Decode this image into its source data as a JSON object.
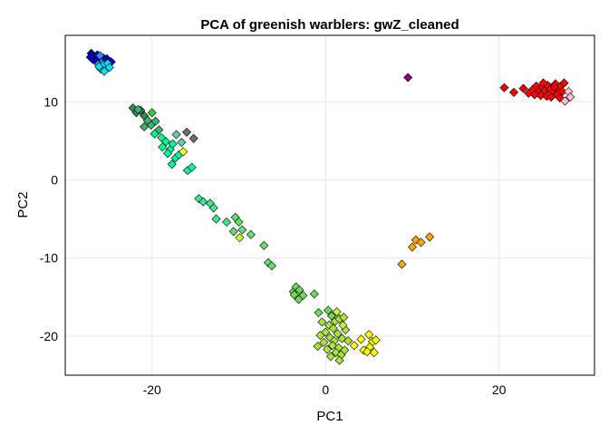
{
  "chart_data": {
    "type": "scatter",
    "title": "PCA of greenish warblers: gwZ_cleaned",
    "xlabel": "PC1",
    "ylabel": "PC2",
    "xlim": [
      -30,
      31
    ],
    "ylim": [
      -25,
      18.5
    ],
    "xticks": [
      -20,
      0,
      20
    ],
    "yticks": [
      -20,
      -10,
      0,
      10
    ],
    "grid": true,
    "marker": "diamond",
    "points": [
      {
        "x": -27.0,
        "y": 16.2,
        "c": "#0000cd"
      },
      {
        "x": -26.6,
        "y": 15.7,
        "c": "#0000cd"
      },
      {
        "x": -26.9,
        "y": 15.9,
        "c": "#0000cd"
      },
      {
        "x": -26.3,
        "y": 16.0,
        "c": "#0000cd"
      },
      {
        "x": -26.1,
        "y": 15.5,
        "c": "#0000cd"
      },
      {
        "x": -26.8,
        "y": 15.4,
        "c": "#0000cd"
      },
      {
        "x": -25.9,
        "y": 15.3,
        "c": "#0000cd"
      },
      {
        "x": -25.6,
        "y": 15.6,
        "c": "#0000cd"
      },
      {
        "x": -26.4,
        "y": 15.2,
        "c": "#0000cd"
      },
      {
        "x": -27.1,
        "y": 15.7,
        "c": "#0000cd"
      },
      {
        "x": -25.2,
        "y": 15.5,
        "c": "#0000cd"
      },
      {
        "x": -24.7,
        "y": 15.1,
        "c": "#0000cd"
      },
      {
        "x": -26.0,
        "y": 15.9,
        "c": "#1e90ff"
      },
      {
        "x": -25.8,
        "y": 15.0,
        "c": "#1e90ff"
      },
      {
        "x": -25.4,
        "y": 14.6,
        "c": "#1e90ff"
      },
      {
        "x": -26.2,
        "y": 14.8,
        "c": "#1e90ff"
      },
      {
        "x": -25.9,
        "y": 14.2,
        "c": "#00e5ff"
      },
      {
        "x": -25.3,
        "y": 14.3,
        "c": "#00e5ff"
      },
      {
        "x": -25.6,
        "y": 14.7,
        "c": "#00e5ff"
      },
      {
        "x": -25.1,
        "y": 14.9,
        "c": "#00e5ff"
      },
      {
        "x": -24.9,
        "y": 14.4,
        "c": "#00e5ff"
      },
      {
        "x": -25.5,
        "y": 13.9,
        "c": "#00e5ff"
      },
      {
        "x": -26.1,
        "y": 14.5,
        "c": "#00e5ff"
      },
      {
        "x": -22.2,
        "y": 9.2,
        "c": "#2e8b57"
      },
      {
        "x": -21.8,
        "y": 8.6,
        "c": "#2e8b57"
      },
      {
        "x": -21.3,
        "y": 8.9,
        "c": "#2e8b57"
      },
      {
        "x": -20.9,
        "y": 8.2,
        "c": "#2e8b57"
      },
      {
        "x": -21.6,
        "y": 9.0,
        "c": "#3cb371"
      },
      {
        "x": -20.5,
        "y": 7.6,
        "c": "#3cb371"
      },
      {
        "x": -20.1,
        "y": 7.0,
        "c": "#3cb371"
      },
      {
        "x": -20.9,
        "y": 6.8,
        "c": "#3cb371"
      },
      {
        "x": -19.6,
        "y": 7.5,
        "c": "#3cb371"
      },
      {
        "x": -19.2,
        "y": 6.4,
        "c": "#3cb371"
      },
      {
        "x": -20.0,
        "y": 8.6,
        "c": "#32cd32"
      },
      {
        "x": -19.7,
        "y": 5.9,
        "c": "#00fa9a"
      },
      {
        "x": -18.9,
        "y": 5.4,
        "c": "#00fa9a"
      },
      {
        "x": -18.4,
        "y": 4.9,
        "c": "#00fa9a"
      },
      {
        "x": -18.8,
        "y": 4.2,
        "c": "#00fa9a"
      },
      {
        "x": -17.9,
        "y": 3.9,
        "c": "#00fa9a"
      },
      {
        "x": -17.6,
        "y": 4.6,
        "c": "#00fa9a"
      },
      {
        "x": -18.2,
        "y": 3.4,
        "c": "#00fa9a"
      },
      {
        "x": -17.3,
        "y": 2.8,
        "c": "#00fa9a"
      },
      {
        "x": -17.7,
        "y": 2.0,
        "c": "#00fa9a"
      },
      {
        "x": -16.9,
        "y": 3.2,
        "c": "#00fa9a"
      },
      {
        "x": -17.2,
        "y": 5.8,
        "c": "#66cdaa"
      },
      {
        "x": -16.6,
        "y": 4.8,
        "c": "#66cdaa"
      },
      {
        "x": -16.4,
        "y": 3.6,
        "c": "#ffff33"
      },
      {
        "x": -15.9,
        "y": 1.2,
        "c": "#00fa9a"
      },
      {
        "x": -15.4,
        "y": 1.6,
        "c": "#00fa9a"
      },
      {
        "x": -16.0,
        "y": 6.1,
        "c": "#6e6e6e"
      },
      {
        "x": -15.2,
        "y": 5.3,
        "c": "#6e6e6e"
      },
      {
        "x": -14.6,
        "y": -2.4,
        "c": "#3ee68f"
      },
      {
        "x": -14.1,
        "y": -2.8,
        "c": "#3ee68f"
      },
      {
        "x": -13.3,
        "y": -3.0,
        "c": "#3ee68f"
      },
      {
        "x": -12.9,
        "y": -3.6,
        "c": "#3ee68f"
      },
      {
        "x": -12.6,
        "y": -5.0,
        "c": "#3ee68f"
      },
      {
        "x": -11.4,
        "y": -5.4,
        "c": "#3ee68f"
      },
      {
        "x": -10.4,
        "y": -4.8,
        "c": "#5fe067"
      },
      {
        "x": -10.0,
        "y": -5.4,
        "c": "#5fe067"
      },
      {
        "x": -10.6,
        "y": -6.6,
        "c": "#5fe067"
      },
      {
        "x": -9.6,
        "y": -6.4,
        "c": "#5fe067"
      },
      {
        "x": -9.9,
        "y": -7.4,
        "c": "#bfff3a"
      },
      {
        "x": -8.6,
        "y": -7.0,
        "c": "#5fe067"
      },
      {
        "x": -7.1,
        "y": -8.4,
        "c": "#5fe067"
      },
      {
        "x": -6.6,
        "y": -10.6,
        "c": "#5fe067"
      },
      {
        "x": -6.2,
        "y": -11.0,
        "c": "#5fe067"
      },
      {
        "x": -3.7,
        "y": -14.3,
        "c": "#6fd856"
      },
      {
        "x": -3.4,
        "y": -13.7,
        "c": "#6fd856"
      },
      {
        "x": -3.0,
        "y": -14.1,
        "c": "#6fd856"
      },
      {
        "x": -3.6,
        "y": -14.7,
        "c": "#6fd856"
      },
      {
        "x": -2.6,
        "y": -14.8,
        "c": "#6fd856"
      },
      {
        "x": -3.1,
        "y": -15.3,
        "c": "#6fd856"
      },
      {
        "x": -1.3,
        "y": -14.6,
        "c": "#6fd856"
      },
      {
        "x": -0.8,
        "y": -17.0,
        "c": "#6fd856"
      },
      {
        "x": 0.3,
        "y": -16.7,
        "c": "#6fd856"
      },
      {
        "x": 0.7,
        "y": -17.4,
        "c": "#6fd856"
      },
      {
        "x": -0.4,
        "y": -18.2,
        "c": "#a8e43a"
      },
      {
        "x": 0.4,
        "y": -18.6,
        "c": "#a8e43a"
      },
      {
        "x": 1.1,
        "y": -18.1,
        "c": "#a8e43a"
      },
      {
        "x": 1.6,
        "y": -17.8,
        "c": "#a8e43a"
      },
      {
        "x": 2.1,
        "y": -17.6,
        "c": "#a8e43a"
      },
      {
        "x": 0.9,
        "y": -19.0,
        "c": "#a8e43a"
      },
      {
        "x": 0.0,
        "y": -19.5,
        "c": "#a8e43a"
      },
      {
        "x": 1.4,
        "y": -19.7,
        "c": "#a8e43a"
      },
      {
        "x": 2.3,
        "y": -19.2,
        "c": "#a8e43a"
      },
      {
        "x": -0.6,
        "y": -19.9,
        "c": "#a8e43a"
      },
      {
        "x": 0.5,
        "y": -20.2,
        "c": "#a8e43a"
      },
      {
        "x": 1.0,
        "y": -20.6,
        "c": "#a8e43a"
      },
      {
        "x": 1.9,
        "y": -20.3,
        "c": "#a8e43a"
      },
      {
        "x": -0.2,
        "y": -20.8,
        "c": "#a8e43a"
      },
      {
        "x": 0.8,
        "y": -21.2,
        "c": "#a8e43a"
      },
      {
        "x": 1.5,
        "y": -21.5,
        "c": "#a8e43a"
      },
      {
        "x": 0.2,
        "y": -21.7,
        "c": "#a8e43a"
      },
      {
        "x": 1.2,
        "y": -22.1,
        "c": "#a8e43a"
      },
      {
        "x": 1.8,
        "y": -22.4,
        "c": "#a8e43a"
      },
      {
        "x": 0.6,
        "y": -22.6,
        "c": "#a8e43a"
      },
      {
        "x": 1.6,
        "y": -23.1,
        "c": "#a8e43a"
      },
      {
        "x": 2.2,
        "y": -21.8,
        "c": "#a8e43a"
      },
      {
        "x": -0.9,
        "y": -21.3,
        "c": "#a8e43a"
      },
      {
        "x": 2.6,
        "y": -20.6,
        "c": "#a8e43a"
      },
      {
        "x": 2.0,
        "y": -18.6,
        "c": "#c6ef3c"
      },
      {
        "x": 1.3,
        "y": -16.9,
        "c": "#c6ef3c"
      },
      {
        "x": 3.3,
        "y": -21.2,
        "c": "#ffff00"
      },
      {
        "x": 4.1,
        "y": -20.4,
        "c": "#ffff00"
      },
      {
        "x": 4.4,
        "y": -21.8,
        "c": "#ffff00"
      },
      {
        "x": 5.0,
        "y": -19.8,
        "c": "#ffff00"
      },
      {
        "x": 5.4,
        "y": -20.7,
        "c": "#ffff00"
      },
      {
        "x": 5.1,
        "y": -21.4,
        "c": "#ffff00"
      },
      {
        "x": 4.8,
        "y": -22.0,
        "c": "#ffff00"
      },
      {
        "x": 5.8,
        "y": -20.5,
        "c": "#ffff00"
      },
      {
        "x": 5.6,
        "y": -22.1,
        "c": "#ffff00"
      },
      {
        "x": 8.8,
        "y": -10.8,
        "c": "#ffa500"
      },
      {
        "x": 10.0,
        "y": -8.6,
        "c": "#ffa500"
      },
      {
        "x": 10.4,
        "y": -7.7,
        "c": "#ffa500"
      },
      {
        "x": 11.0,
        "y": -8.0,
        "c": "#ffa500"
      },
      {
        "x": 12.0,
        "y": -7.3,
        "c": "#ffa500"
      },
      {
        "x": 9.5,
        "y": 13.1,
        "c": "#8b008b"
      },
      {
        "x": 20.6,
        "y": 11.8,
        "c": "#ff0000"
      },
      {
        "x": 21.7,
        "y": 11.2,
        "c": "#ff0000"
      },
      {
        "x": 22.8,
        "y": 11.7,
        "c": "#ff0000"
      },
      {
        "x": 23.4,
        "y": 11.1,
        "c": "#ff0000"
      },
      {
        "x": 23.9,
        "y": 11.6,
        "c": "#ff0000"
      },
      {
        "x": 24.3,
        "y": 12.0,
        "c": "#ff0000"
      },
      {
        "x": 24.6,
        "y": 11.3,
        "c": "#ff0000"
      },
      {
        "x": 25.0,
        "y": 11.9,
        "c": "#ff0000"
      },
      {
        "x": 25.3,
        "y": 11.4,
        "c": "#ff0000"
      },
      {
        "x": 25.6,
        "y": 12.1,
        "c": "#ff0000"
      },
      {
        "x": 25.9,
        "y": 11.6,
        "c": "#ff0000"
      },
      {
        "x": 26.2,
        "y": 11.2,
        "c": "#ff0000"
      },
      {
        "x": 26.5,
        "y": 12.3,
        "c": "#ff0000"
      },
      {
        "x": 26.8,
        "y": 11.7,
        "c": "#ff0000"
      },
      {
        "x": 27.1,
        "y": 12.0,
        "c": "#ff0000"
      },
      {
        "x": 27.3,
        "y": 11.3,
        "c": "#ff0000"
      },
      {
        "x": 24.8,
        "y": 10.8,
        "c": "#ff0000"
      },
      {
        "x": 25.5,
        "y": 10.7,
        "c": "#ff0000"
      },
      {
        "x": 26.0,
        "y": 10.6,
        "c": "#ff0000"
      },
      {
        "x": 26.7,
        "y": 10.9,
        "c": "#ff0000"
      },
      {
        "x": 24.1,
        "y": 10.9,
        "c": "#ff0000"
      },
      {
        "x": 27.5,
        "y": 12.4,
        "c": "#ff0000"
      },
      {
        "x": 26.4,
        "y": 11.9,
        "c": "#ff0000"
      },
      {
        "x": 25.1,
        "y": 12.4,
        "c": "#ff0000"
      },
      {
        "x": 27.0,
        "y": 10.5,
        "c": "#ff0000"
      },
      {
        "x": 28.0,
        "y": 11.3,
        "c": "#ffc0cb"
      },
      {
        "x": 27.6,
        "y": 10.1,
        "c": "#ffc0cb"
      },
      {
        "x": 28.2,
        "y": 10.6,
        "c": "#ffc0cb"
      }
    ]
  }
}
